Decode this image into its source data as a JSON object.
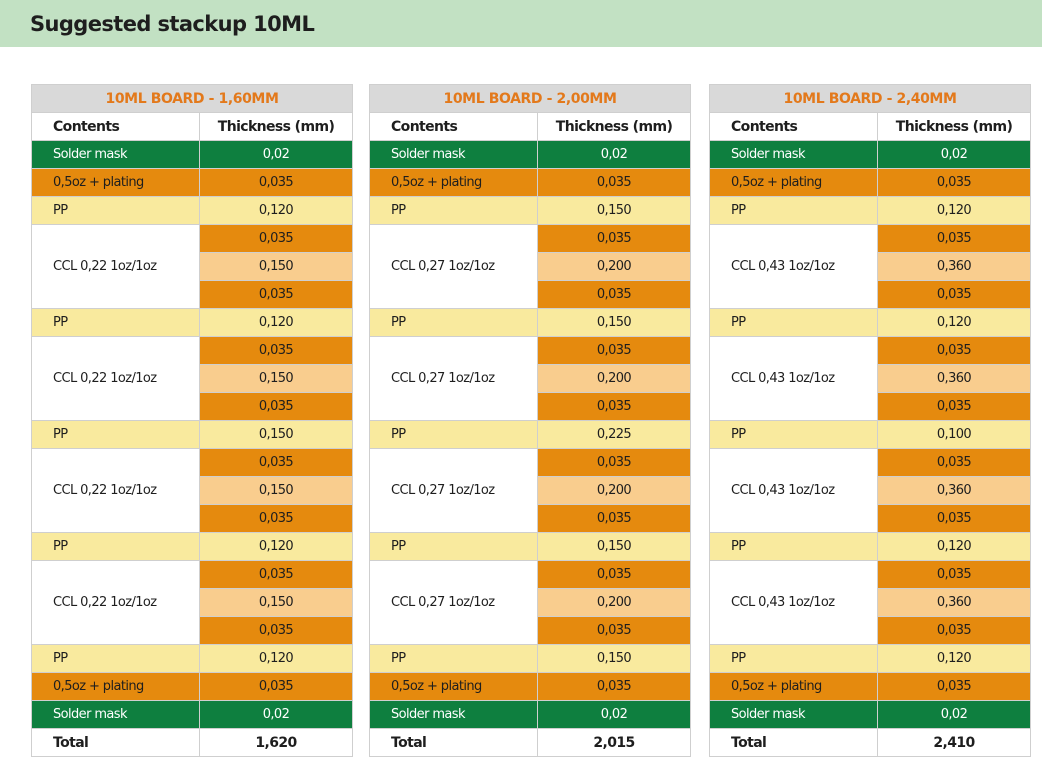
{
  "page": {
    "title": "Suggested stackup 10ML"
  },
  "boards": [
    {
      "title": "10ML BOARD - 1,60MM",
      "col_contents": "Contents",
      "col_thickness": "Thickness (mm)",
      "rows": [
        {
          "label": "Solder mask",
          "type": "mask",
          "values": [
            "0,02"
          ]
        },
        {
          "label": "0,5oz + plating",
          "type": "cu",
          "values": [
            "0,035"
          ]
        },
        {
          "label": "PP",
          "type": "pp",
          "values": [
            "0,120"
          ]
        },
        {
          "label": "CCL 0,22 1oz/1oz",
          "type": "ccl",
          "values": [
            "0,035",
            "0,150",
            "0,035"
          ]
        },
        {
          "label": "PP",
          "type": "pp",
          "values": [
            "0,120"
          ]
        },
        {
          "label": "CCL 0,22 1oz/1oz",
          "type": "ccl",
          "values": [
            "0,035",
            "0,150",
            "0,035"
          ]
        },
        {
          "label": "PP",
          "type": "pp",
          "values": [
            "0,150"
          ]
        },
        {
          "label": "CCL 0,22 1oz/1oz",
          "type": "ccl",
          "values": [
            "0,035",
            "0,150",
            "0,035"
          ]
        },
        {
          "label": "PP",
          "type": "pp",
          "values": [
            "0,120"
          ]
        },
        {
          "label": "CCL 0,22 1oz/1oz",
          "type": "ccl",
          "values": [
            "0,035",
            "0,150",
            "0,035"
          ]
        },
        {
          "label": "PP",
          "type": "pp",
          "values": [
            "0,120"
          ]
        },
        {
          "label": "0,5oz + plating",
          "type": "cu",
          "values": [
            "0,035"
          ]
        },
        {
          "label": "Solder mask",
          "type": "mask",
          "values": [
            "0,02"
          ]
        }
      ],
      "total_label": "Total",
      "total_value": "1,620"
    },
    {
      "title": "10ML BOARD - 2,00MM",
      "col_contents": "Contents",
      "col_thickness": "Thickness (mm)",
      "rows": [
        {
          "label": "Solder mask",
          "type": "mask",
          "values": [
            "0,02"
          ]
        },
        {
          "label": "0,5oz + plating",
          "type": "cu",
          "values": [
            "0,035"
          ]
        },
        {
          "label": "PP",
          "type": "pp",
          "values": [
            "0,150"
          ]
        },
        {
          "label": "CCL 0,27 1oz/1oz",
          "type": "ccl",
          "values": [
            "0,035",
            "0,200",
            "0,035"
          ]
        },
        {
          "label": "PP",
          "type": "pp",
          "values": [
            "0,150"
          ]
        },
        {
          "label": "CCL 0,27 1oz/1oz",
          "type": "ccl",
          "values": [
            "0,035",
            "0,200",
            "0,035"
          ]
        },
        {
          "label": "PP",
          "type": "pp",
          "values": [
            "0,225"
          ]
        },
        {
          "label": "CCL 0,27 1oz/1oz",
          "type": "ccl",
          "values": [
            "0,035",
            "0,200",
            "0,035"
          ]
        },
        {
          "label": "PP",
          "type": "pp",
          "values": [
            "0,150"
          ]
        },
        {
          "label": "CCL 0,27 1oz/1oz",
          "type": "ccl",
          "values": [
            "0,035",
            "0,200",
            "0,035"
          ]
        },
        {
          "label": "PP",
          "type": "pp",
          "values": [
            "0,150"
          ]
        },
        {
          "label": "0,5oz + plating",
          "type": "cu",
          "values": [
            "0,035"
          ]
        },
        {
          "label": "Solder mask",
          "type": "mask",
          "values": [
            "0,02"
          ]
        }
      ],
      "total_label": "Total",
      "total_value": "2,015"
    },
    {
      "title": "10ML BOARD - 2,40MM",
      "col_contents": "Contents",
      "col_thickness": "Thickness (mm)",
      "rows": [
        {
          "label": "Solder mask",
          "type": "mask",
          "values": [
            "0,02"
          ]
        },
        {
          "label": "0,5oz + plating",
          "type": "cu",
          "values": [
            "0,035"
          ]
        },
        {
          "label": "PP",
          "type": "pp",
          "values": [
            "0,120"
          ]
        },
        {
          "label": "CCL 0,43 1oz/1oz",
          "type": "ccl",
          "values": [
            "0,035",
            "0,360",
            "0,035"
          ]
        },
        {
          "label": "PP",
          "type": "pp",
          "values": [
            "0,120"
          ]
        },
        {
          "label": "CCL 0,43 1oz/1oz",
          "type": "ccl",
          "values": [
            "0,035",
            "0,360",
            "0,035"
          ]
        },
        {
          "label": "PP",
          "type": "pp",
          "values": [
            "0,100"
          ]
        },
        {
          "label": "CCL 0,43 1oz/1oz",
          "type": "ccl",
          "values": [
            "0,035",
            "0,360",
            "0,035"
          ]
        },
        {
          "label": "PP",
          "type": "pp",
          "values": [
            "0,120"
          ]
        },
        {
          "label": "CCL 0,43 1oz/1oz",
          "type": "ccl",
          "values": [
            "0,035",
            "0,360",
            "0,035"
          ]
        },
        {
          "label": "PP",
          "type": "pp",
          "values": [
            "0,120"
          ]
        },
        {
          "label": "0,5oz + plating",
          "type": "cu",
          "values": [
            "0,035"
          ]
        },
        {
          "label": "Solder mask",
          "type": "mask",
          "values": [
            "0,02"
          ]
        }
      ],
      "total_label": "Total",
      "total_value": "2,410"
    }
  ],
  "colors": {
    "solder_mask": "#0e7f3f",
    "copper": "#e58a0e",
    "prepreg": "#f9ea9e",
    "core": "#f9cd8e",
    "title_bar": "#c2e1c3",
    "board_title_text": "#e3791b",
    "board_title_bg": "#d9d9d9"
  }
}
